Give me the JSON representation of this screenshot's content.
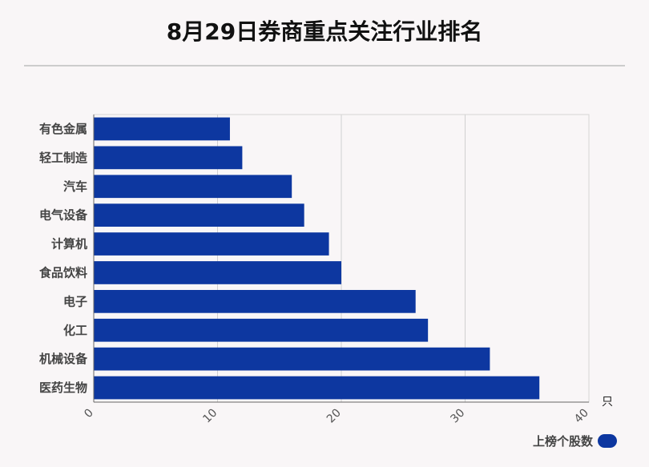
{
  "title": "8月29日券商重点关注行业排名",
  "chart_data": {
    "type": "bar",
    "orientation": "horizontal",
    "categories": [
      "有色金属",
      "轻工制造",
      "汽车",
      "电气设备",
      "计算机",
      "食品饮料",
      "电子",
      "化工",
      "机械设备",
      "医药生物"
    ],
    "series": [
      {
        "name": "上榜个股数",
        "values": [
          11,
          12,
          16,
          17,
          19,
          20,
          26,
          27,
          32,
          36
        ]
      }
    ],
    "xlim": [
      0,
      40
    ],
    "xticks": [
      "0",
      "10",
      "20",
      "30",
      "40"
    ],
    "x_unit": "只",
    "grid": true,
    "legend_position": "bottom-right",
    "bar_color": "#0d37a0"
  }
}
